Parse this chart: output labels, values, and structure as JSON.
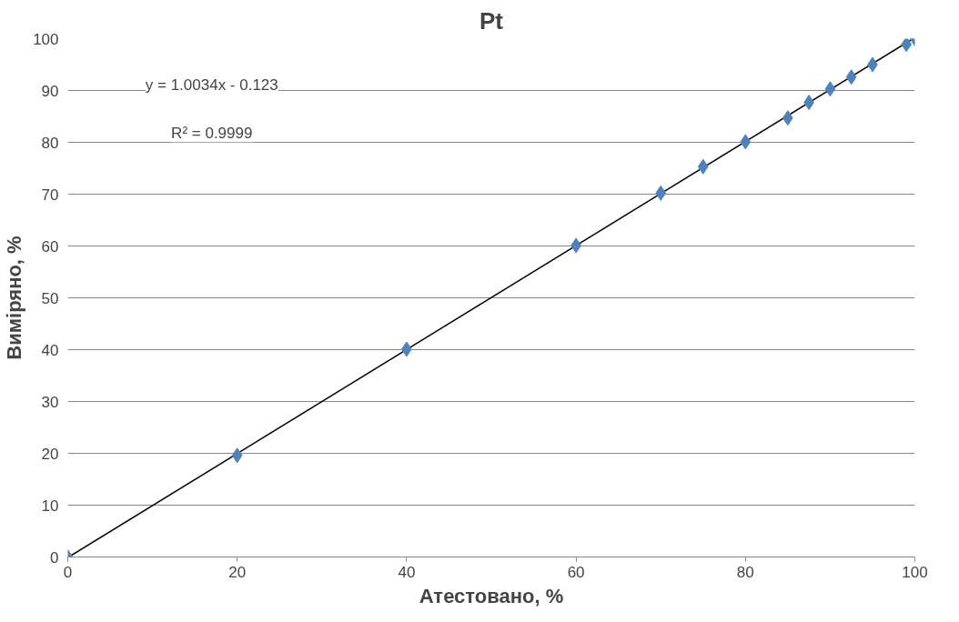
{
  "chart_data": {
    "type": "scatter",
    "title": "Pt",
    "xlabel": "Атестовано, %",
    "ylabel": "Виміряно, %",
    "xlim": [
      0,
      100
    ],
    "xticks": [
      0,
      20,
      40,
      60,
      80,
      100
    ],
    "ylim": [
      0,
      100
    ],
    "yticks": [
      0,
      10,
      20,
      30,
      40,
      50,
      60,
      70,
      80,
      90,
      100
    ],
    "grid": "y",
    "marker": "diamond",
    "annotations": [
      "y = 1.0034x - 0.123",
      "R² = 0.9999"
    ],
    "series": [
      {
        "color": "#4f81bd",
        "x": [
          0,
          20,
          40,
          60,
          70,
          75,
          80,
          85,
          87.5,
          90,
          92.5,
          95,
          99,
          100
        ],
        "values": [
          0,
          19.6,
          40.1,
          60.1,
          70.2,
          75.3,
          80.1,
          84.7,
          87.7,
          90.3,
          92.6,
          95.0,
          98.9,
          100
        ]
      },
      {
        "type": "line",
        "color": "#000000",
        "line_style": "solid",
        "marker": "none",
        "x": [
          0.12,
          99.79
        ],
        "values": [
          0,
          100
        ]
      }
    ]
  }
}
